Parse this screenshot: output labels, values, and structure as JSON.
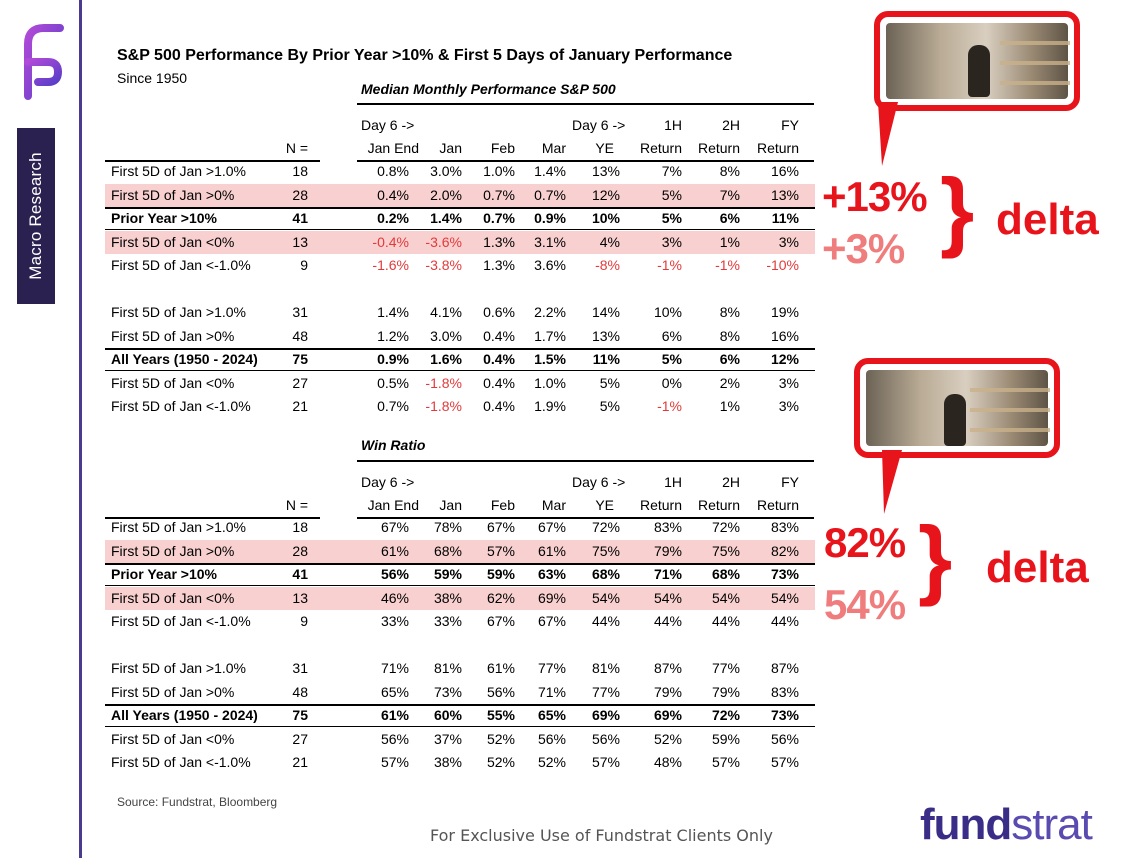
{
  "sidebar": {
    "tab_label": "Macro Research"
  },
  "title": "S&P 500 Performance By Prior Year >10% & First 5 Days of January Performance",
  "subtitle": "Since 1950",
  "columns": {
    "n": "N =",
    "day6_jan_end_top": "Day 6 ->",
    "day6_jan_end_bottom": "Jan End",
    "jan": "Jan",
    "feb": "Feb",
    "mar": "Mar",
    "day6_ye_top": "Day 6 ->",
    "day6_ye_bottom": "YE",
    "h1_top": "1H",
    "h1_bottom": "Return",
    "h2_top": "2H",
    "h2_bottom": "Return",
    "fy_top": "FY",
    "fy_bottom": "Return"
  },
  "median": {
    "section_title": "Median Monthly Performance S&P 500",
    "rows": [
      {
        "label": "First 5D of Jan >1.0%",
        "n": "18",
        "v": [
          "0.8%",
          "3.0%",
          "1.0%",
          "1.4%",
          "13%",
          "7%",
          "8%",
          "16%"
        ]
      },
      {
        "label": "First 5D of Jan >0%",
        "n": "28",
        "v": [
          "0.4%",
          "2.0%",
          "0.7%",
          "0.7%",
          "12%",
          "5%",
          "7%",
          "13%"
        ]
      },
      {
        "label": "Prior Year >10%",
        "n": "41",
        "v": [
          "0.2%",
          "1.4%",
          "0.7%",
          "0.9%",
          "10%",
          "5%",
          "6%",
          "11%"
        ]
      },
      {
        "label": "First 5D of Jan <0%",
        "n": "13",
        "v": [
          "-0.4%",
          "-3.6%",
          "1.3%",
          "3.1%",
          "4%",
          "3%",
          "1%",
          "3%"
        ]
      },
      {
        "label": "First 5D of Jan <-1.0%",
        "n": "9",
        "v": [
          "-1.6%",
          "-3.8%",
          "1.3%",
          "3.6%",
          "-8%",
          "-1%",
          "-1%",
          "-10%"
        ]
      },
      {
        "label": "First 5D of Jan >1.0%",
        "n": "31",
        "v": [
          "1.4%",
          "4.1%",
          "0.6%",
          "2.2%",
          "14%",
          "10%",
          "8%",
          "19%"
        ]
      },
      {
        "label": "First 5D of Jan >0%",
        "n": "48",
        "v": [
          "1.2%",
          "3.0%",
          "0.4%",
          "1.7%",
          "13%",
          "6%",
          "8%",
          "16%"
        ]
      },
      {
        "label": "All Years (1950 - 2024)",
        "n": "75",
        "v": [
          "0.9%",
          "1.6%",
          "0.4%",
          "1.5%",
          "11%",
          "5%",
          "6%",
          "12%"
        ]
      },
      {
        "label": "First 5D of Jan <0%",
        "n": "27",
        "v": [
          "0.5%",
          "-1.8%",
          "0.4%",
          "1.0%",
          "5%",
          "0%",
          "2%",
          "3%"
        ]
      },
      {
        "label": "First 5D of Jan <-1.0%",
        "n": "21",
        "v": [
          "0.7%",
          "-1.8%",
          "0.4%",
          "1.9%",
          "5%",
          "-1%",
          "1%",
          "3%"
        ]
      }
    ]
  },
  "win": {
    "section_title": "Win Ratio",
    "rows": [
      {
        "label": "First 5D of Jan >1.0%",
        "n": "18",
        "v": [
          "67%",
          "78%",
          "67%",
          "67%",
          "72%",
          "83%",
          "72%",
          "83%"
        ]
      },
      {
        "label": "First 5D of Jan >0%",
        "n": "28",
        "v": [
          "61%",
          "68%",
          "57%",
          "61%",
          "75%",
          "79%",
          "75%",
          "82%"
        ]
      },
      {
        "label": "Prior Year >10%",
        "n": "41",
        "v": [
          "56%",
          "59%",
          "59%",
          "63%",
          "68%",
          "71%",
          "68%",
          "73%"
        ]
      },
      {
        "label": "First 5D of Jan <0%",
        "n": "13",
        "v": [
          "46%",
          "38%",
          "62%",
          "69%",
          "54%",
          "54%",
          "54%",
          "54%"
        ]
      },
      {
        "label": "First 5D of Jan <-1.0%",
        "n": "9",
        "v": [
          "33%",
          "33%",
          "67%",
          "67%",
          "44%",
          "44%",
          "44%",
          "44%"
        ]
      },
      {
        "label": "First 5D of Jan >1.0%",
        "n": "31",
        "v": [
          "71%",
          "81%",
          "61%",
          "77%",
          "81%",
          "87%",
          "77%",
          "87%"
        ]
      },
      {
        "label": "First 5D of Jan >0%",
        "n": "48",
        "v": [
          "65%",
          "73%",
          "56%",
          "71%",
          "77%",
          "79%",
          "79%",
          "83%"
        ]
      },
      {
        "label": "All Years (1950 - 2024)",
        "n": "75",
        "v": [
          "61%",
          "60%",
          "55%",
          "65%",
          "69%",
          "69%",
          "72%",
          "73%"
        ]
      },
      {
        "label": "First 5D of Jan <0%",
        "n": "27",
        "v": [
          "56%",
          "37%",
          "52%",
          "56%",
          "56%",
          "52%",
          "59%",
          "56%"
        ]
      },
      {
        "label": "First 5D of Jan <-1.0%",
        "n": "21",
        "v": [
          "57%",
          "38%",
          "52%",
          "52%",
          "57%",
          "48%",
          "57%",
          "57%"
        ]
      }
    ]
  },
  "annotations": {
    "top_high": "+13%",
    "top_low": "+3%",
    "top_delta": "delta",
    "bottom_high": "82%",
    "bottom_low": "54%",
    "bottom_delta": "delta"
  },
  "source": "Source: Fundstrat, Bloomberg",
  "footer": "For Exclusive Use of Fundstrat Clients Only",
  "brand": {
    "part1": "fund",
    "part2": "strat"
  },
  "colors": {
    "highlight": "#f9d0d0",
    "negative": "#e23a3a",
    "callout_red": "#e8141b",
    "callout_pink": "#f07d7d",
    "brand": "#3a2d88"
  }
}
